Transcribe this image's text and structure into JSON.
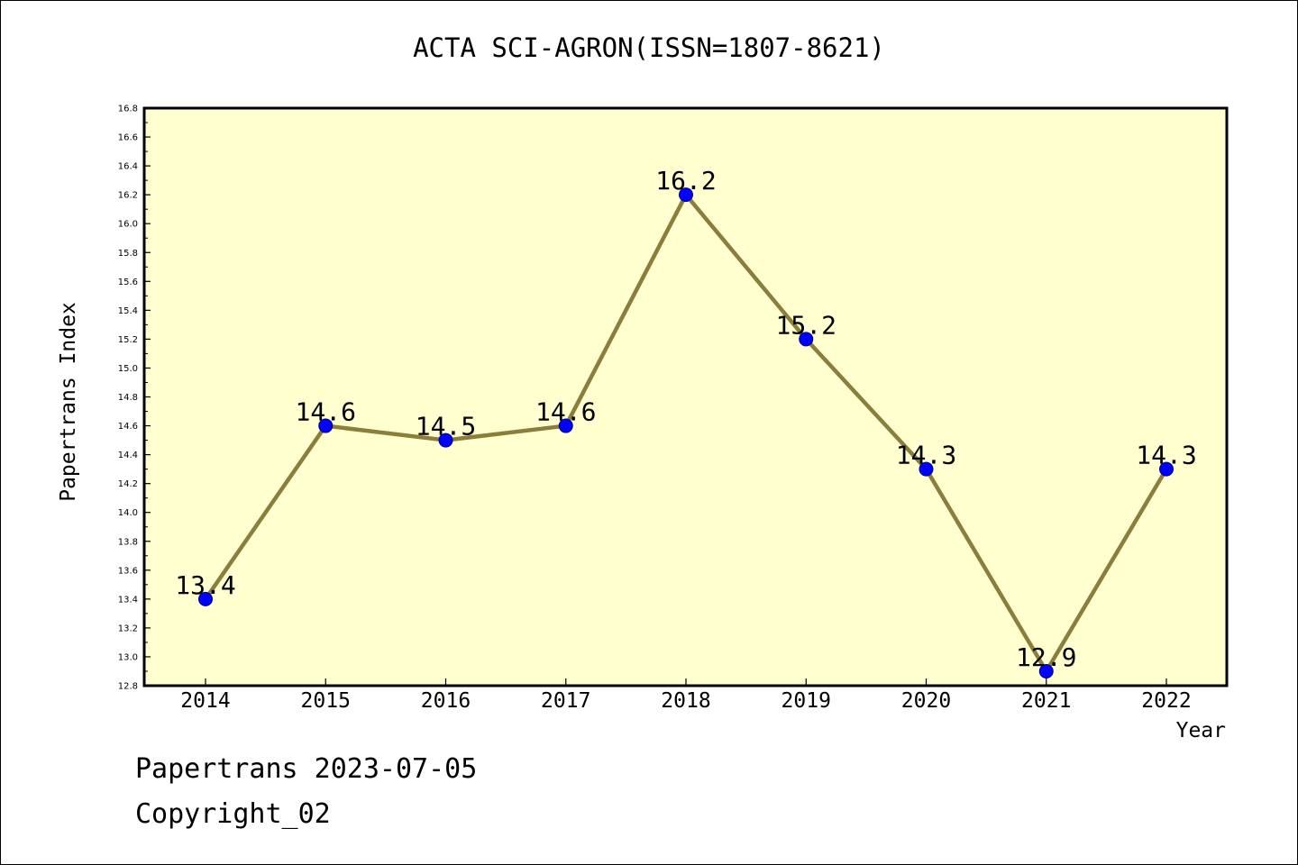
{
  "chart_data": {
    "type": "line",
    "title": "ACTA SCI-AGRON(ISSN=1807-8621)",
    "xlabel": "Year",
    "ylabel": "Papertrans Index",
    "categories": [
      "2014",
      "2015",
      "2016",
      "2017",
      "2018",
      "2019",
      "2020",
      "2021",
      "2022"
    ],
    "values": [
      13.4,
      14.6,
      14.5,
      14.6,
      16.2,
      15.2,
      14.3,
      12.9,
      14.3
    ],
    "data_labels": [
      "13.4",
      "14.6",
      "14.5",
      "14.6",
      "16.2",
      "15.2",
      "14.3",
      "12.9",
      "14.3"
    ],
    "ylim": [
      12.8,
      16.8
    ],
    "yticks": [
      "12.8",
      "13.0",
      "13.2",
      "13.4",
      "13.6",
      "13.8",
      "14.0",
      "14.2",
      "14.4",
      "14.6",
      "14.8",
      "15.0",
      "15.2",
      "15.4",
      "15.6",
      "15.8",
      "16.0",
      "16.2",
      "16.4",
      "16.6",
      "16.8"
    ],
    "grid": false,
    "legend": "none",
    "colors": {
      "plot_background": "#ffffd0",
      "line": "#8b7d3a",
      "marker": "#0000ff"
    }
  },
  "footer": {
    "line1": "Papertrans 2023-07-05",
    "line2": "Copyright_02"
  }
}
